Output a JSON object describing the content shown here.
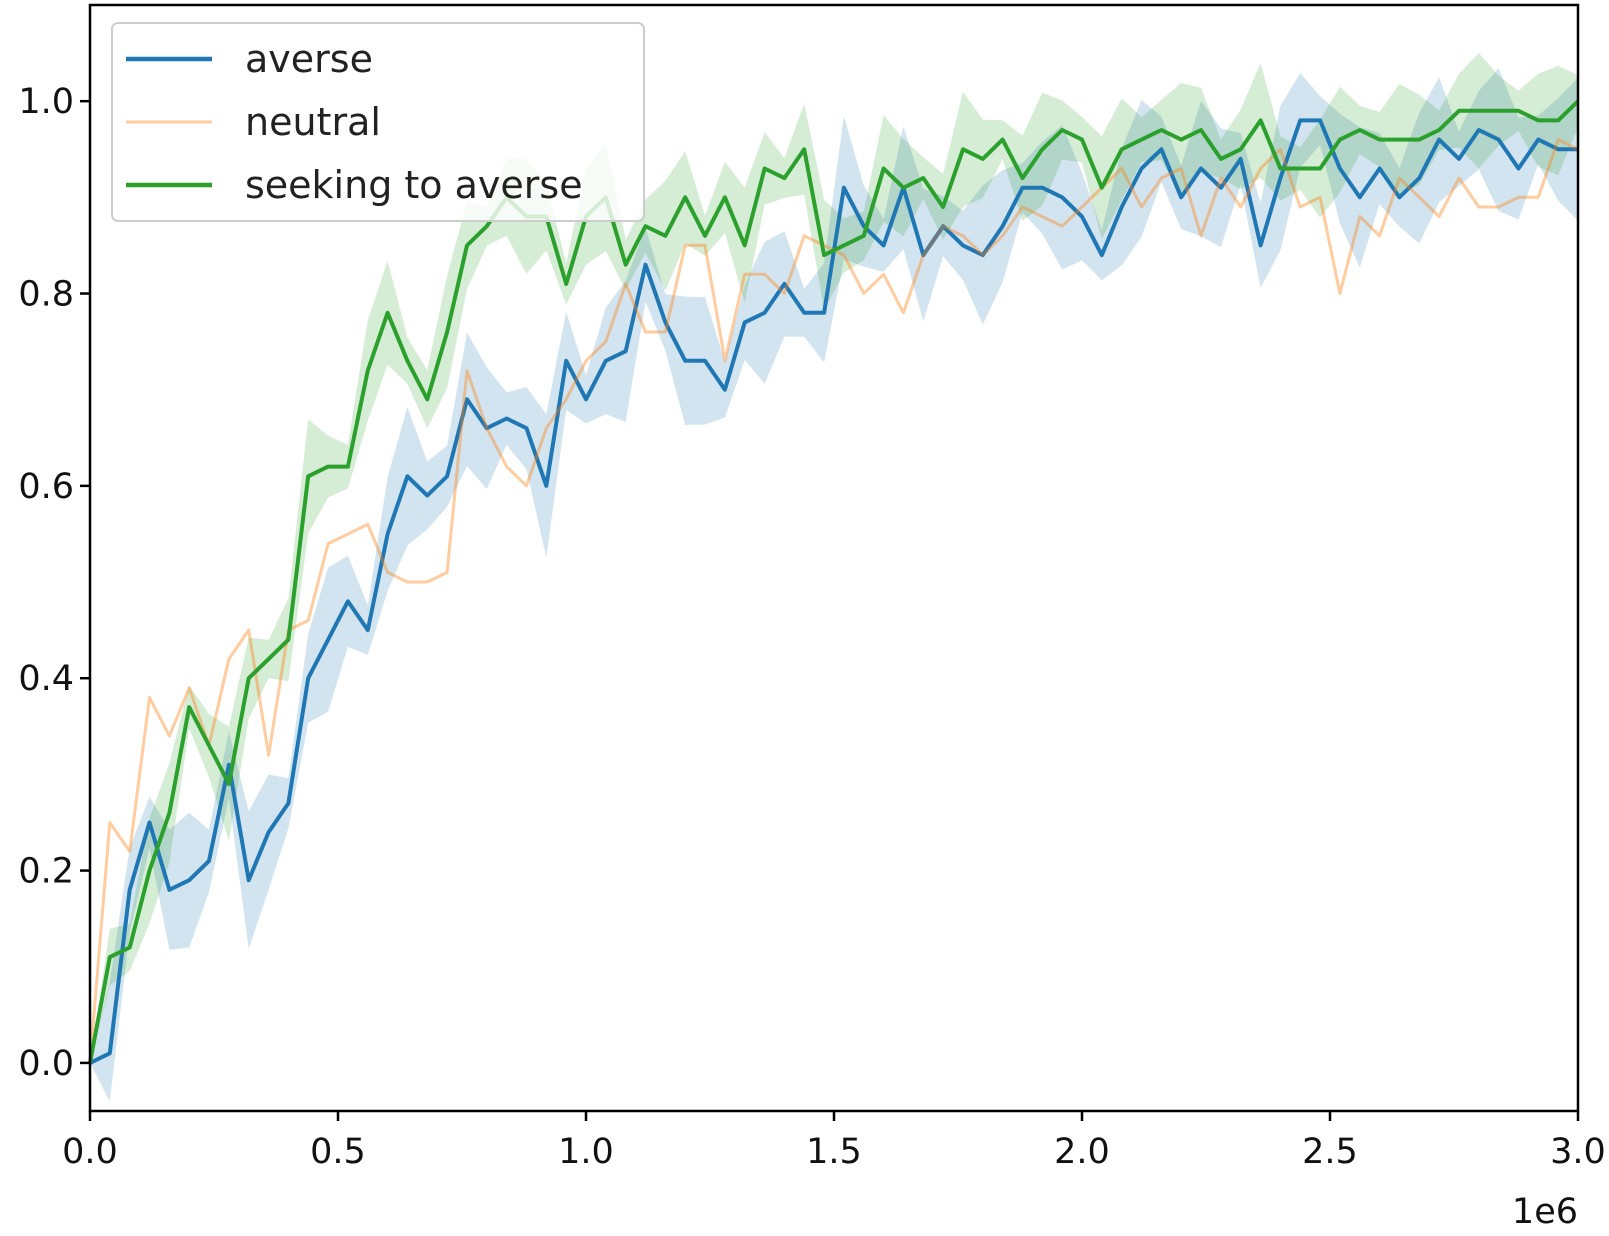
{
  "chart_data": {
    "type": "line",
    "title": "",
    "xlabel": "",
    "ylabel": "",
    "x_offset_label": "1e6",
    "xlim": [
      0,
      3.0
    ],
    "ylim": [
      -0.05,
      1.1
    ],
    "grid": false,
    "legend_position": "top-left",
    "x_ticks": [
      0.0,
      0.5,
      1.0,
      1.5,
      2.0,
      2.5,
      3.0
    ],
    "x_tick_labels": [
      "0.0",
      "0.5",
      "1.0",
      "1.5",
      "2.0",
      "2.5",
      "3.0"
    ],
    "y_ticks": [
      0.0,
      0.2,
      0.4,
      0.6,
      0.8,
      1.0
    ],
    "y_tick_labels": [
      "0.0",
      "0.2",
      "0.4",
      "0.6",
      "0.8",
      "1.0"
    ],
    "x": [
      0.0,
      0.04,
      0.08,
      0.12,
      0.16,
      0.2,
      0.24,
      0.28,
      0.32,
      0.36,
      0.4,
      0.44,
      0.48,
      0.52,
      0.56,
      0.6,
      0.64,
      0.68,
      0.72,
      0.76,
      0.8,
      0.84,
      0.88,
      0.92,
      0.96,
      1.0,
      1.04,
      1.08,
      1.12,
      1.16,
      1.2,
      1.24,
      1.28,
      1.32,
      1.36,
      1.4,
      1.44,
      1.48,
      1.52,
      1.56,
      1.6,
      1.64,
      1.68,
      1.72,
      1.76,
      1.8,
      1.84,
      1.88,
      1.92,
      1.96,
      2.0,
      2.04,
      2.08,
      2.12,
      2.16,
      2.2,
      2.24,
      2.28,
      2.32,
      2.36,
      2.4,
      2.44,
      2.48,
      2.52,
      2.56,
      2.6,
      2.64,
      2.68,
      2.72,
      2.76,
      2.8,
      2.84,
      2.88,
      2.92,
      2.96,
      3.0
    ],
    "series": [
      {
        "name": "averse",
        "color": "#1f77b4",
        "values": [
          0.0,
          0.01,
          0.18,
          0.25,
          0.18,
          0.19,
          0.21,
          0.31,
          0.19,
          0.24,
          0.27,
          0.4,
          0.44,
          0.48,
          0.45,
          0.55,
          0.61,
          0.59,
          0.61,
          0.69,
          0.66,
          0.67,
          0.66,
          0.6,
          0.73,
          0.69,
          0.73,
          0.74,
          0.83,
          0.77,
          0.73,
          0.73,
          0.7,
          0.77,
          0.78,
          0.81,
          0.78,
          0.78,
          0.91,
          0.87,
          0.85,
          0.91,
          0.84,
          0.87,
          0.85,
          0.84,
          0.87,
          0.91,
          0.91,
          0.9,
          0.88,
          0.84,
          0.89,
          0.93,
          0.95,
          0.9,
          0.93,
          0.91,
          0.94,
          0.85,
          0.92,
          0.98,
          0.98,
          0.93,
          0.9,
          0.93,
          0.9,
          0.92,
          0.96,
          0.94,
          0.97,
          0.96,
          0.93,
          0.96,
          0.95,
          0.95
        ],
        "band": 0.05
      },
      {
        "name": "neutral",
        "color": "#ff7f0e",
        "values": [
          0.0,
          0.25,
          0.22,
          0.38,
          0.34,
          0.39,
          0.33,
          0.42,
          0.45,
          0.32,
          0.45,
          0.46,
          0.54,
          0.55,
          0.56,
          0.51,
          0.5,
          0.5,
          0.51,
          0.72,
          0.66,
          0.62,
          0.6,
          0.66,
          0.69,
          0.73,
          0.75,
          0.81,
          0.76,
          0.76,
          0.85,
          0.85,
          0.73,
          0.82,
          0.82,
          0.8,
          0.86,
          0.85,
          0.84,
          0.8,
          0.82,
          0.78,
          0.84,
          0.87,
          0.86,
          0.84,
          0.86,
          0.89,
          0.88,
          0.87,
          0.89,
          0.91,
          0.93,
          0.89,
          0.92,
          0.93,
          0.86,
          0.92,
          0.89,
          0.93,
          0.95,
          0.89,
          0.9,
          0.8,
          0.88,
          0.86,
          0.92,
          0.9,
          0.88,
          0.92,
          0.89,
          0.89,
          0.9,
          0.9,
          0.96,
          0.95
        ],
        "band": 0.0
      },
      {
        "name": "seeking to averse",
        "color": "#2ca02c",
        "values": [
          0.0,
          0.11,
          0.12,
          0.2,
          0.26,
          0.37,
          0.33,
          0.29,
          0.4,
          0.42,
          0.44,
          0.61,
          0.62,
          0.62,
          0.72,
          0.78,
          0.73,
          0.69,
          0.76,
          0.85,
          0.87,
          0.9,
          0.88,
          0.88,
          0.81,
          0.88,
          0.9,
          0.83,
          0.87,
          0.86,
          0.9,
          0.86,
          0.9,
          0.85,
          0.93,
          0.92,
          0.95,
          0.84,
          0.85,
          0.86,
          0.93,
          0.91,
          0.92,
          0.89,
          0.95,
          0.94,
          0.96,
          0.92,
          0.95,
          0.97,
          0.96,
          0.91,
          0.95,
          0.96,
          0.97,
          0.96,
          0.97,
          0.94,
          0.95,
          0.98,
          0.93,
          0.93,
          0.93,
          0.96,
          0.97,
          0.96,
          0.96,
          0.96,
          0.97,
          0.99,
          0.99,
          0.99,
          0.99,
          0.98,
          0.98,
          1.0
        ],
        "band": 0.04
      }
    ]
  }
}
